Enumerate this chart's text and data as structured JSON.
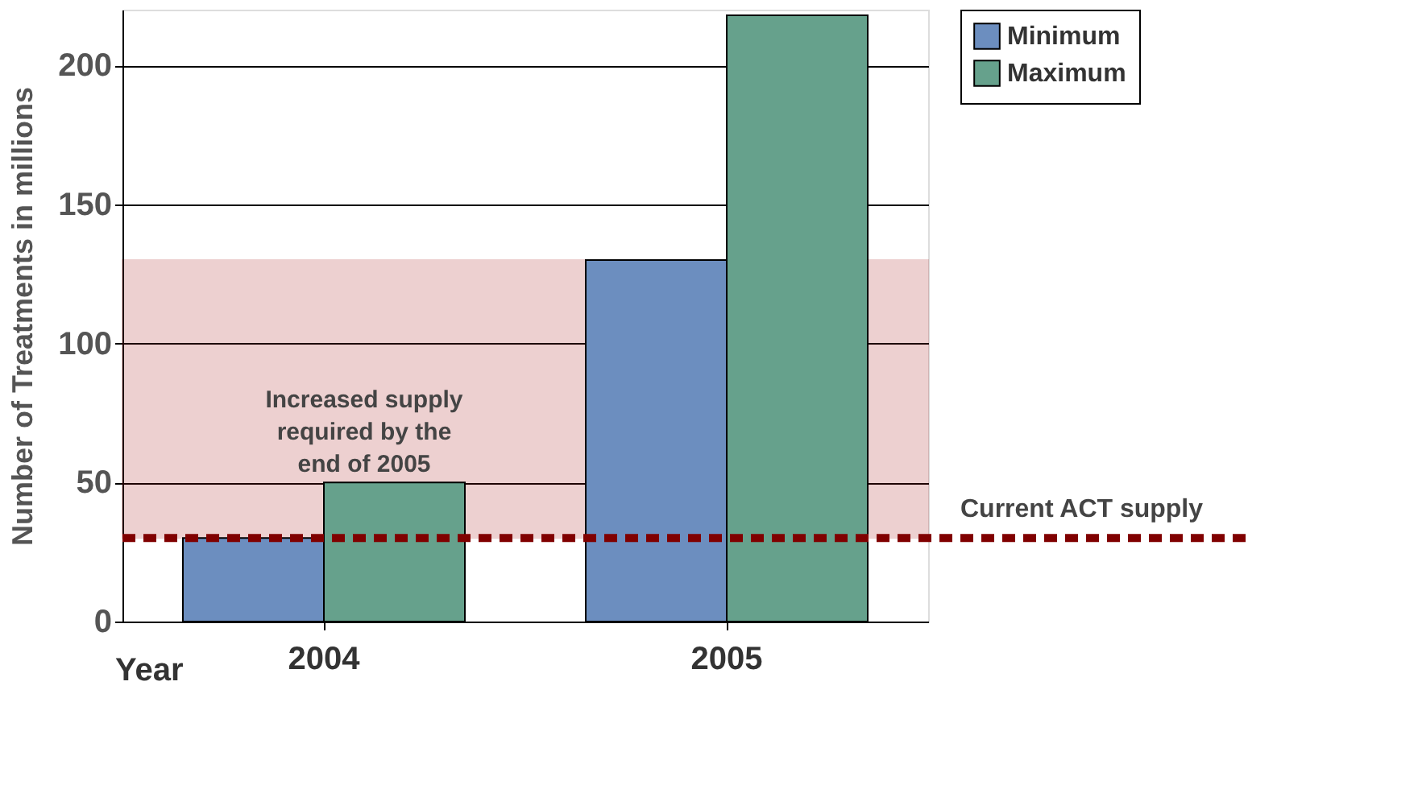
{
  "chart_data": {
    "type": "bar",
    "xlabel": "Year",
    "ylabel": "Number of Treatments in millions",
    "categories": [
      "2004",
      "2005"
    ],
    "series": [
      {
        "name": "Minimum",
        "color": "#6c8ebf",
        "values": [
          30,
          130
        ]
      },
      {
        "name": "Maximum",
        "color": "#66a18c",
        "values": [
          50,
          218
        ]
      }
    ],
    "ylim": [
      0,
      220
    ],
    "yticks": [
      0,
      50,
      100,
      150,
      200
    ],
    "grid": "y",
    "legend": "top right",
    "ref_lines": [
      {
        "axis": "y",
        "value": 30,
        "label": "Current ACT supply",
        "color": "#800000",
        "line_style": "dashed"
      }
    ],
    "bands": [
      {
        "axis": "y",
        "from": 30,
        "to": 130,
        "label": "Increased supply required by the end of 2005",
        "color": "#a00000"
      }
    ]
  }
}
